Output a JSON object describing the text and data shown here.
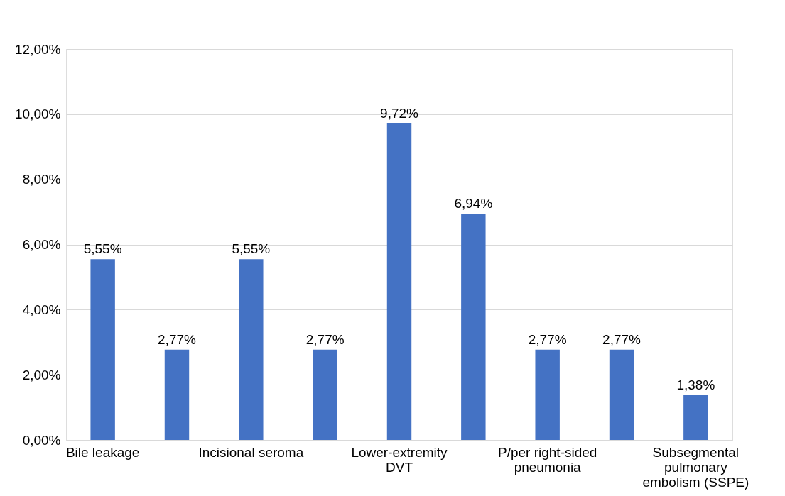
{
  "chart_data": {
    "type": "bar",
    "categories": [
      "Bile leakage",
      null,
      "Incisional seroma",
      null,
      "Lower-extremity DVT",
      null,
      "P/per right-sided pneumonia",
      null,
      "Subsegmental pulmonary embolism (SSPE)"
    ],
    "values": [
      5.55,
      2.77,
      5.55,
      2.77,
      9.72,
      6.94,
      2.77,
      2.77,
      1.38
    ],
    "value_labels": [
      "5,55%",
      "2,77%",
      "5,55%",
      "2,77%",
      "9,72%",
      "6,94%",
      "2,77%",
      "2,77%",
      "1,38%"
    ],
    "color": "#4472c4",
    "ylim": [
      0,
      12
    ],
    "yticks": [
      {
        "value": 0,
        "label": "0,00%"
      },
      {
        "value": 2,
        "label": "2,00%"
      },
      {
        "value": 4,
        "label": "4,00%"
      },
      {
        "value": 6,
        "label": "6,00%"
      },
      {
        "value": 8,
        "label": "8,00%"
      },
      {
        "value": 10,
        "label": "10,00%"
      },
      {
        "value": 12,
        "label": "12,00%"
      }
    ],
    "grid": "y"
  }
}
